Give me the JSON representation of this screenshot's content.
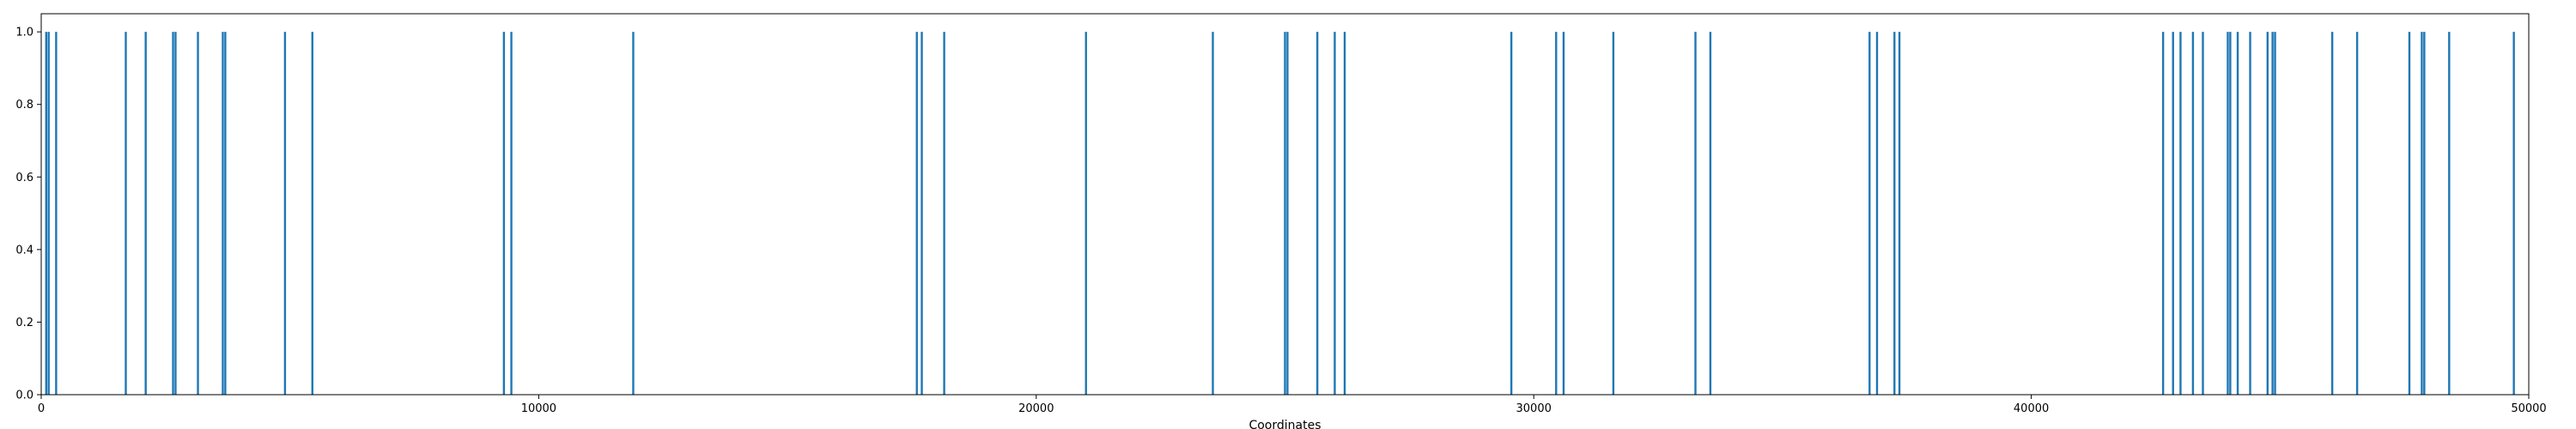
{
  "chart_data": {
    "type": "bar",
    "title": "",
    "xlabel": "Coordinates",
    "ylabel": "",
    "xlim": [
      0,
      50000
    ],
    "ylim": [
      0,
      1.05
    ],
    "x_ticks": [
      0,
      10000,
      20000,
      30000,
      40000,
      50000
    ],
    "x_tick_labels": [
      "0",
      "10000",
      "20000",
      "30000",
      "40000",
      "50000"
    ],
    "y_ticks": [
      0,
      0.2,
      0.4,
      0.6,
      0.8,
      1.0
    ],
    "y_tick_labels": [
      "0.0",
      "0.2",
      "0.4",
      "0.6",
      "0.8",
      "1.0"
    ],
    "grid": false,
    "bar_color": "#1f77b4",
    "series": [
      {
        "values_y": 1.0,
        "x": [
          100,
          150,
          300,
          1700,
          2100,
          2650,
          2700,
          3150,
          3650,
          3700,
          4900,
          5450,
          9300,
          9450,
          11900,
          17600,
          17700,
          18150,
          21000,
          23550,
          25000,
          25050,
          25650,
          26000,
          26200,
          29550,
          30450,
          30600,
          31600,
          33250,
          33550,
          36750,
          36900,
          37250,
          37350,
          42650,
          42850,
          43000,
          43250,
          43450,
          43950,
          44000,
          44150,
          44400,
          44750,
          44850,
          44900,
          46050,
          46550,
          47600,
          47850,
          47900,
          48400,
          49700
        ]
      }
    ]
  }
}
